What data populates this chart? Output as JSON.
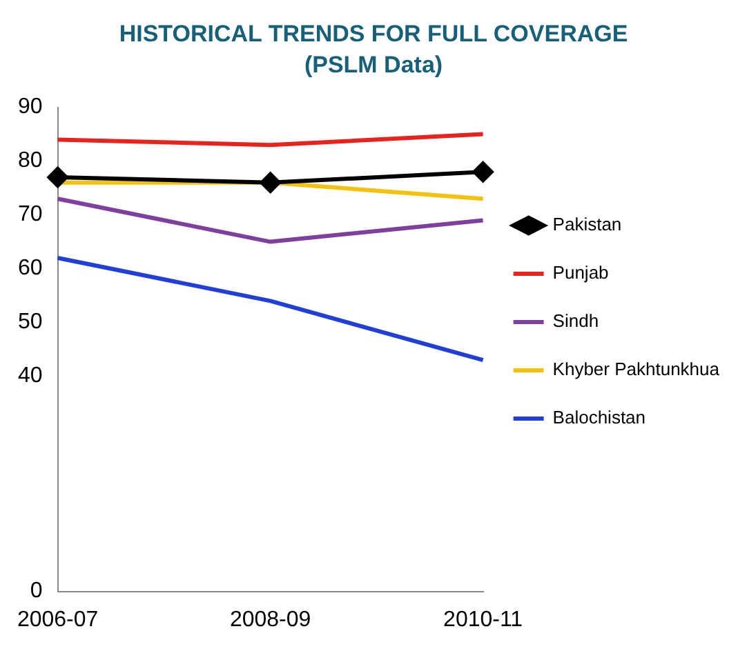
{
  "chart_data": {
    "type": "line",
    "title": "HISTORICAL TRENDS FOR FULL COVERAGE",
    "subtitle": "(PSLM Data)",
    "categories": [
      "2006-07",
      "2008-09",
      "2010-11"
    ],
    "series": [
      {
        "name": "Pakistan",
        "color": "#000000",
        "marker": "diamond",
        "values": [
          77,
          76,
          78
        ]
      },
      {
        "name": "Punjab",
        "color": "#e8231e",
        "marker": "none",
        "values": [
          84,
          83,
          85
        ]
      },
      {
        "name": "Sindh",
        "color": "#7f3f9f",
        "marker": "none",
        "values": [
          73,
          65,
          69
        ]
      },
      {
        "name": "Khyber Pakhtunkhua",
        "color": "#f2c20f",
        "marker": "none",
        "values": [
          76,
          76,
          73
        ]
      },
      {
        "name": "Balochistan",
        "color": "#1f3fd8",
        "marker": "none",
        "values": [
          62,
          54,
          43
        ]
      }
    ],
    "ylim": [
      0,
      90
    ],
    "yticks": [
      0,
      40,
      50,
      60,
      70,
      80,
      90
    ],
    "grid": false,
    "legend": "right",
    "line_style": "solid"
  }
}
